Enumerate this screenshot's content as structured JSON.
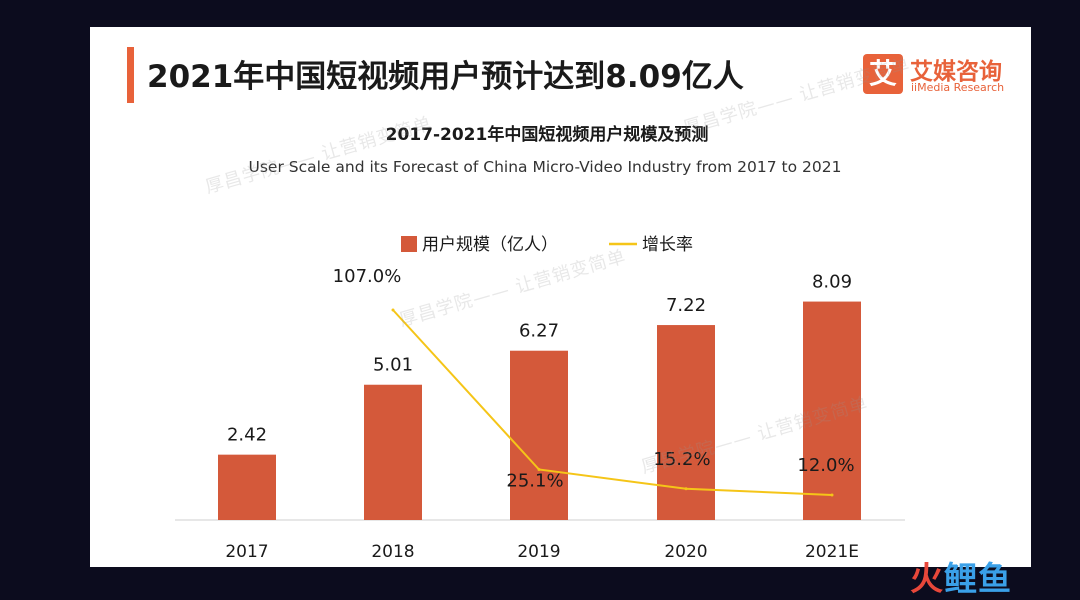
{
  "slide_title": "2021年中国短视频用户预计达到8.09亿人",
  "logo": {
    "mark": "艾",
    "name_cn": "艾媒咨询",
    "name_en": "iiMedia Research"
  },
  "watermarks": [
    "厚昌学院—— 让营销变简单",
    "厚昌学院—— 让营销变简单",
    "厚昌学院—— 让营销变简单",
    "厚昌学院—— 让营销变简单"
  ],
  "footer_logo": {
    "part1": "火",
    "part2": "鲤鱼"
  },
  "colors": {
    "bar": "#d4593a",
    "line": "#f5c518",
    "accent": "#e8623a",
    "background": "#0c0c1e"
  },
  "chart_data": {
    "type": "bar",
    "title": "2017-2021年中国短视频用户规模及预测",
    "subtitle": "User Scale and its Forecast of China Micro-Video Industry from 2017 to 2021",
    "legend_position": "top-center",
    "categories": [
      "2017",
      "2018",
      "2019",
      "2020",
      "2021E"
    ],
    "series": [
      {
        "name": "用户规模（亿人）",
        "type": "bar",
        "values": [
          2.42,
          5.01,
          6.27,
          7.22,
          8.09
        ],
        "labels": [
          "2.42",
          "5.01",
          "6.27",
          "7.22",
          "8.09"
        ]
      },
      {
        "name": "增长率",
        "type": "line",
        "values": [
          null,
          107.0,
          25.1,
          15.2,
          12.0
        ],
        "labels": [
          "",
          "107.0%",
          "25.1%",
          "15.2%",
          "12.0%"
        ]
      }
    ],
    "grid": false
  }
}
